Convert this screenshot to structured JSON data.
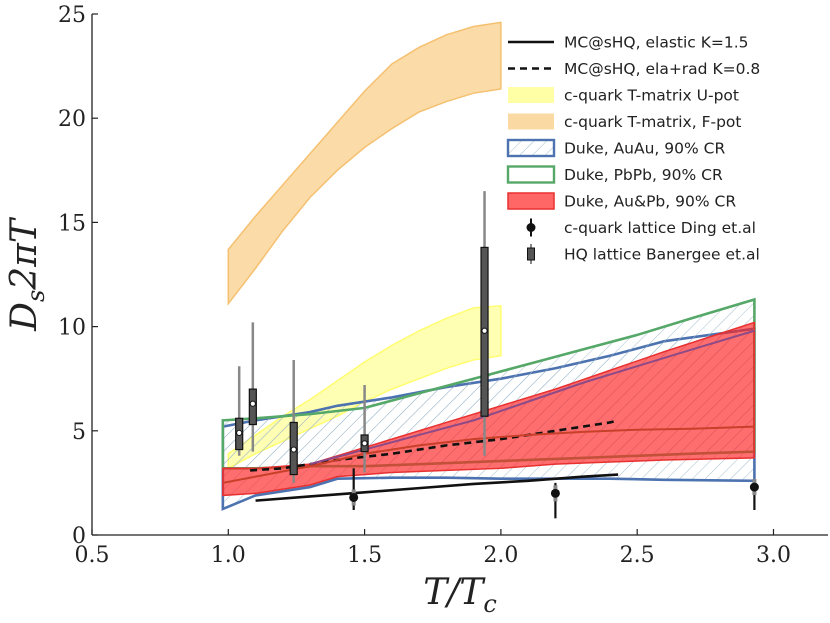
{
  "chart_data": {
    "type": "line",
    "xlabel": "T/T_c",
    "ylabel": "D_s 2πT",
    "xlim": [
      0.5,
      3.2
    ],
    "ylim": [
      0,
      25
    ],
    "grid": false,
    "legend_placement": "top-right",
    "xticks": [
      {
        "value": 0.5,
        "label": "0.5"
      },
      {
        "value": 1.0,
        "label": "1.0"
      },
      {
        "value": 1.5,
        "label": "1.5"
      },
      {
        "value": 2.0,
        "label": "2.0"
      },
      {
        "value": 2.5,
        "label": "2.5"
      },
      {
        "value": 3.0,
        "label": "3.0"
      }
    ],
    "yticks": [
      {
        "value": 0,
        "label": "0"
      },
      {
        "value": 5,
        "label": "5"
      },
      {
        "value": 10,
        "label": "10"
      },
      {
        "value": 15,
        "label": "15"
      },
      {
        "value": 20,
        "label": "20"
      },
      {
        "value": 25,
        "label": "25"
      }
    ],
    "bands": [
      {
        "id": "fpot",
        "name": "c-quark T-matrix, F-pot",
        "fill": "#f9c97a",
        "stroke": "#f5c070",
        "opacity": 0.65,
        "x": [
          1.0,
          1.1,
          1.2,
          1.3,
          1.4,
          1.5,
          1.6,
          1.7,
          1.8,
          1.9,
          2.0
        ],
        "upper": [
          13.7,
          15.3,
          16.8,
          18.3,
          19.8,
          21.3,
          22.6,
          23.4,
          24.0,
          24.4,
          24.6
        ],
        "lower": [
          11.1,
          12.8,
          14.6,
          16.2,
          17.5,
          18.6,
          19.5,
          20.3,
          20.8,
          21.2,
          21.4
        ]
      },
      {
        "id": "upot",
        "name": "c-quark T-matrix U-pot",
        "fill": "#ffff80",
        "stroke": "#ffff70",
        "opacity": 0.6,
        "x": [
          1.0,
          1.1,
          1.2,
          1.3,
          1.4,
          1.5,
          1.6,
          1.7,
          1.8,
          1.9,
          2.0
        ],
        "upper": [
          3.9,
          4.8,
          5.7,
          6.5,
          7.4,
          8.3,
          9.1,
          9.8,
          10.4,
          10.9,
          11.0
        ],
        "lower": [
          3.2,
          3.9,
          4.5,
          5.1,
          5.7,
          6.4,
          7.0,
          7.5,
          8.0,
          8.4,
          8.6
        ]
      },
      {
        "id": "au",
        "name": "Duke, AuAu, 90% CR",
        "fill": "none",
        "stroke": "#4c72b0",
        "hatch": true,
        "x": [
          0.98,
          1.1,
          1.3,
          1.4,
          1.6,
          1.8,
          2.0,
          2.2,
          2.4,
          2.6,
          2.93
        ],
        "upper": [
          5.2,
          5.5,
          5.9,
          6.2,
          6.6,
          7.1,
          7.5,
          8.0,
          8.6,
          9.3,
          9.9
        ],
        "lower": [
          1.25,
          1.9,
          2.3,
          2.7,
          2.75,
          2.75,
          2.7,
          2.7,
          2.7,
          2.65,
          2.6
        ]
      },
      {
        "id": "pb",
        "name": "Duke, PbPb, 90% CR",
        "fill": "none",
        "stroke": "#55a868",
        "hatch": true,
        "x": [
          0.98,
          1.1,
          1.3,
          1.5,
          1.7,
          1.9,
          2.1,
          2.3,
          2.5,
          2.7,
          2.93
        ],
        "upper": [
          5.5,
          5.6,
          5.8,
          6.1,
          6.8,
          7.5,
          8.2,
          8.9,
          9.6,
          10.4,
          11.3
        ],
        "lower": [
          3.2,
          3.2,
          3.3,
          3.3,
          3.4,
          3.5,
          3.6,
          3.7,
          3.8,
          3.9,
          4.0
        ]
      },
      {
        "id": "aupb",
        "name": "Duke, Au&Pb, 90% CR",
        "fill": "#ff2020",
        "stroke": "#e83030",
        "opacity": 0.65,
        "x": [
          0.98,
          1.1,
          1.3,
          1.4,
          1.6,
          1.8,
          2.0,
          2.2,
          2.4,
          2.6,
          2.93
        ],
        "upper": [
          3.2,
          3.2,
          3.4,
          3.8,
          4.6,
          5.4,
          6.2,
          7.0,
          7.9,
          8.8,
          10.2
        ],
        "lower": [
          1.9,
          2.0,
          2.4,
          2.8,
          3.0,
          3.1,
          3.2,
          3.4,
          3.5,
          3.6,
          3.7
        ]
      }
    ],
    "series": [
      {
        "id": "elastic",
        "name": "MC@sHQ, elastic K=1.5",
        "color": "#111111",
        "dash": "",
        "x": [
          1.1,
          1.3,
          1.5,
          1.7,
          1.9,
          2.1,
          2.3,
          2.43
        ],
        "y": [
          1.65,
          1.85,
          2.05,
          2.25,
          2.45,
          2.6,
          2.8,
          2.9
        ]
      },
      {
        "id": "elarad",
        "name": "MC@sHQ, ela+rad K=0.8",
        "color": "#111111",
        "dash": "7,5",
        "x": [
          1.08,
          1.2,
          1.4,
          1.6,
          1.8,
          2.0,
          2.2,
          2.4,
          2.43
        ],
        "y": [
          3.1,
          3.2,
          3.6,
          3.9,
          4.3,
          4.6,
          5.0,
          5.4,
          5.5
        ]
      },
      {
        "id": "red_mid",
        "name": "",
        "color": "#c8402a",
        "dash": "",
        "x": [
          0.98,
          1.1,
          1.3,
          1.5,
          1.7,
          1.9,
          2.1,
          2.3,
          2.5,
          2.7,
          2.93
        ],
        "y": [
          2.5,
          2.8,
          3.3,
          3.9,
          4.3,
          4.6,
          4.8,
          4.95,
          5.05,
          5.1,
          5.2
        ]
      },
      {
        "id": "purple_upper",
        "name": "",
        "color": "#8e4a86",
        "dash": "",
        "x": [
          1.3,
          1.5,
          1.7,
          1.9,
          2.1,
          2.3,
          2.5,
          2.7,
          2.93
        ],
        "y": [
          3.4,
          4.1,
          4.8,
          5.5,
          6.4,
          7.3,
          8.1,
          8.9,
          9.8
        ]
      }
    ],
    "ding_points": {
      "name": "c-quark lattice Ding et.al",
      "color": "#111111",
      "points": [
        {
          "x": 1.46,
          "y": 1.8,
          "ylow": 1.2,
          "yhigh": 3.2
        },
        {
          "x": 2.2,
          "y": 2.0,
          "ylow": 0.8,
          "yhigh": 2.5
        },
        {
          "x": 2.93,
          "y": 2.3,
          "ylow": 1.2,
          "yhigh": 2.6
        }
      ]
    },
    "banerjee_points": {
      "name": "HQ lattice Banergee et.al",
      "color": "#111111",
      "points": [
        {
          "x": 1.04,
          "y": 4.9,
          "box_low": 4.1,
          "box_high": 5.6,
          "whisk_low": 3.8,
          "whisk_high": 8.1
        },
        {
          "x": 1.09,
          "y": 6.3,
          "box_low": 5.3,
          "box_high": 7.0,
          "whisk_low": 4.0,
          "whisk_high": 10.2
        },
        {
          "x": 1.24,
          "y": 4.1,
          "box_low": 2.9,
          "box_high": 5.4,
          "whisk_low": 2.5,
          "whisk_high": 8.4
        },
        {
          "x": 1.5,
          "y": 4.4,
          "box_low": 4.0,
          "box_high": 4.8,
          "whisk_low": 3.0,
          "whisk_high": 7.2
        },
        {
          "x": 1.94,
          "y": 9.8,
          "box_low": 5.7,
          "box_high": 13.8,
          "whisk_low": 3.8,
          "whisk_high": 16.5
        }
      ]
    },
    "legend": [
      {
        "label": "MC@sHQ, elastic K=1.5",
        "kind": "line",
        "color": "#111111"
      },
      {
        "label": "MC@sHQ, ela+rad K=0.8",
        "kind": "dashed",
        "color": "#111111"
      },
      {
        "label": "c-quark T-matrix U-pot",
        "kind": "patch",
        "color": "#ffff80"
      },
      {
        "label": "c-quark T-matrix, F-pot",
        "kind": "patch",
        "color": "#f9c97a"
      },
      {
        "label": "Duke, AuAu, 90% CR",
        "kind": "hatch",
        "color": "#4c72b0"
      },
      {
        "label": "Duke, PbPb, 90% CR",
        "kind": "outline",
        "color": "#55a868"
      },
      {
        "label": "Duke, Au&Pb, 90% CR",
        "kind": "patch-red",
        "color": "#ff4040"
      },
      {
        "label": "c-quark lattice Ding et.al",
        "kind": "errorbar",
        "color": "#111111"
      },
      {
        "label": "HQ lattice Banergee et.al",
        "kind": "box",
        "color": "#111111"
      }
    ]
  }
}
